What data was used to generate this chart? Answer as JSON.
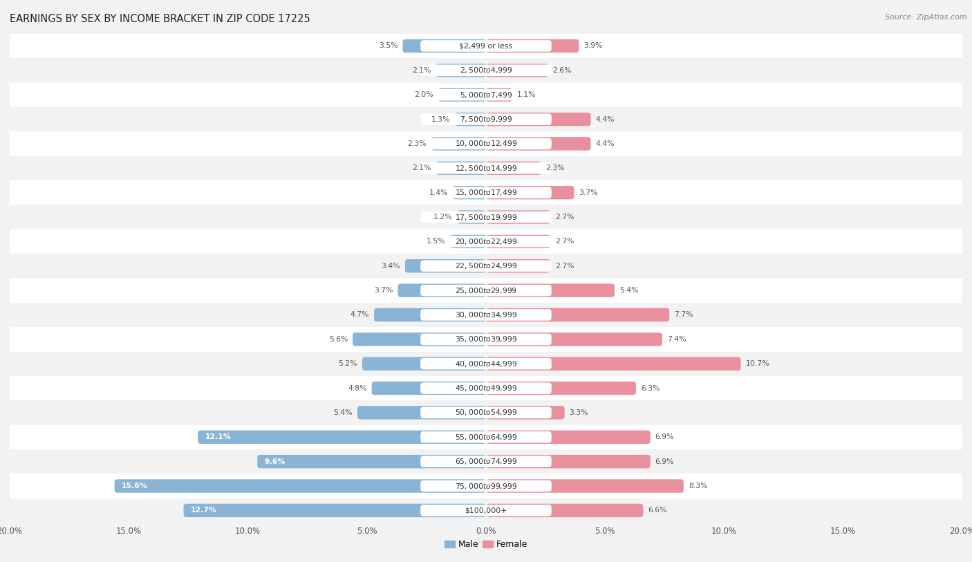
{
  "title": "EARNINGS BY SEX BY INCOME BRACKET IN ZIP CODE 17225",
  "source": "Source: ZipAtlas.com",
  "categories": [
    "$2,499 or less",
    "$2,500 to $4,999",
    "$5,000 to $7,499",
    "$7,500 to $9,999",
    "$10,000 to $12,499",
    "$12,500 to $14,999",
    "$15,000 to $17,499",
    "$17,500 to $19,999",
    "$20,000 to $22,499",
    "$22,500 to $24,999",
    "$25,000 to $29,999",
    "$30,000 to $34,999",
    "$35,000 to $39,999",
    "$40,000 to $44,999",
    "$45,000 to $49,999",
    "$50,000 to $54,999",
    "$55,000 to $64,999",
    "$65,000 to $74,999",
    "$75,000 to $99,999",
    "$100,000+"
  ],
  "male_values": [
    3.5,
    2.1,
    2.0,
    1.3,
    2.3,
    2.1,
    1.4,
    1.2,
    1.5,
    3.4,
    3.7,
    4.7,
    5.6,
    5.2,
    4.8,
    5.4,
    12.1,
    9.6,
    15.6,
    12.7
  ],
  "female_values": [
    3.9,
    2.6,
    1.1,
    4.4,
    4.4,
    2.3,
    3.7,
    2.7,
    2.7,
    2.7,
    5.4,
    7.7,
    7.4,
    10.7,
    6.3,
    3.3,
    6.9,
    6.9,
    8.3,
    6.6
  ],
  "male_color": "#8ab4d6",
  "female_color": "#e8909e",
  "male_label": "Male",
  "female_label": "Female",
  "xlim": 20.0,
  "row_color_even": "#f2f2f2",
  "row_color_odd": "#ffffff",
  "title_fontsize": 10.5,
  "source_fontsize": 8,
  "bar_height": 0.55,
  "label_inside_threshold": 6.0,
  "category_box_color": "#ffffff",
  "category_fontsize": 7.8,
  "value_fontsize": 7.8
}
